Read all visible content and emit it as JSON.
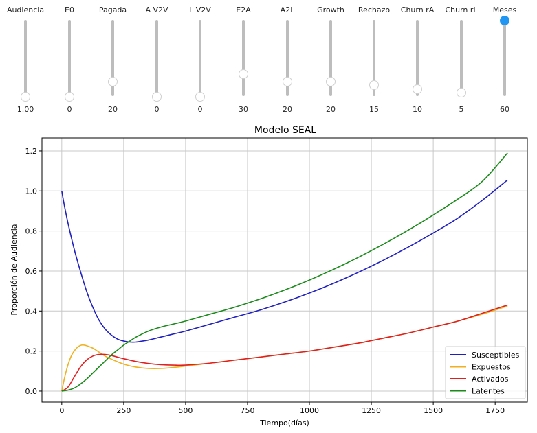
{
  "sliders": [
    {
      "label": "Audiencia",
      "value": "1.00",
      "level": 0.0,
      "active": false
    },
    {
      "label": "E0",
      "value": "0",
      "level": 0.0,
      "active": false
    },
    {
      "label": "Pagada",
      "value": "20",
      "level": 0.2,
      "active": false
    },
    {
      "label": "A V2V",
      "value": "0",
      "level": 0.0,
      "active": false
    },
    {
      "label": "L V2V",
      "value": "0",
      "level": 0.0,
      "active": false
    },
    {
      "label": "E2A",
      "value": "30",
      "level": 0.3,
      "active": false
    },
    {
      "label": "A2L",
      "value": "20",
      "level": 0.2,
      "active": false
    },
    {
      "label": "Growth",
      "value": "20",
      "level": 0.2,
      "active": false
    },
    {
      "label": "Rechazo",
      "value": "15",
      "level": 0.15,
      "active": false
    },
    {
      "label": "Churn rA",
      "value": "10",
      "level": 0.1,
      "active": false
    },
    {
      "label": "Churn rL",
      "value": "5",
      "level": 0.05,
      "active": false
    },
    {
      "label": "Meses",
      "value": "60",
      "level": 1.0,
      "active": true
    }
  ],
  "chart_data": {
    "type": "line",
    "title": "Modelo SEAL",
    "xlabel": "Tiempo(días)",
    "ylabel": "Proporción de Audiencia",
    "xlim": [
      -80,
      1880
    ],
    "ylim": [
      -0.055,
      1.265
    ],
    "xticks": [
      0,
      250,
      500,
      750,
      1000,
      1250,
      1500,
      1750
    ],
    "yticks": [
      0.0,
      0.2,
      0.4,
      0.6,
      0.8,
      1.0,
      1.2
    ],
    "xtick_labels": [
      "0",
      "250",
      "500",
      "750",
      "1000",
      "1250",
      "1500",
      "1750"
    ],
    "ytick_labels": [
      "0.0",
      "0.2",
      "0.4",
      "0.6",
      "0.8",
      "1.0",
      "1.2"
    ],
    "grid": true,
    "legend_position": "bottom-right",
    "series": [
      {
        "name": "Susceptibles",
        "color": "#1f1fbf",
        "x": [
          0,
          10,
          25,
          50,
          75,
          100,
          125,
          150,
          175,
          200,
          225,
          250,
          275,
          300,
          325,
          350,
          400,
          450,
          500,
          600,
          700,
          800,
          900,
          1000,
          1100,
          1200,
          1300,
          1400,
          1500,
          1600,
          1700,
          1800
        ],
        "y": [
          1.0,
          0.93,
          0.84,
          0.71,
          0.6,
          0.5,
          0.42,
          0.355,
          0.31,
          0.28,
          0.26,
          0.25,
          0.245,
          0.245,
          0.25,
          0.255,
          0.27,
          0.285,
          0.3,
          0.335,
          0.37,
          0.405,
          0.445,
          0.49,
          0.54,
          0.595,
          0.655,
          0.72,
          0.79,
          0.865,
          0.955,
          1.055
        ]
      },
      {
        "name": "Expuestos",
        "color": "#f0b020",
        "x": [
          0,
          10,
          20,
          30,
          40,
          50,
          60,
          70,
          80,
          90,
          100,
          125,
          150,
          175,
          200,
          250,
          300,
          350,
          400,
          450,
          500,
          600,
          700,
          800,
          900,
          1000,
          1100,
          1200,
          1300,
          1400,
          1500,
          1600,
          1700,
          1800
        ],
        "y": [
          0.0,
          0.06,
          0.11,
          0.15,
          0.18,
          0.2,
          0.215,
          0.225,
          0.23,
          0.23,
          0.227,
          0.215,
          0.195,
          0.175,
          0.16,
          0.135,
          0.12,
          0.113,
          0.113,
          0.118,
          0.125,
          0.14,
          0.155,
          0.17,
          0.185,
          0.2,
          0.22,
          0.24,
          0.265,
          0.29,
          0.32,
          0.35,
          0.385,
          0.425
        ]
      },
      {
        "name": "Activados",
        "color": "#e02020",
        "x": [
          0,
          25,
          50,
          75,
          100,
          125,
          150,
          175,
          200,
          225,
          250,
          300,
          350,
          400,
          450,
          500,
          600,
          700,
          800,
          900,
          1000,
          1100,
          1200,
          1300,
          1400,
          1500,
          1600,
          1700,
          1800
        ],
        "y": [
          0.0,
          0.02,
          0.07,
          0.12,
          0.155,
          0.175,
          0.183,
          0.183,
          0.178,
          0.17,
          0.162,
          0.148,
          0.138,
          0.132,
          0.13,
          0.13,
          0.14,
          0.155,
          0.17,
          0.185,
          0.2,
          0.22,
          0.24,
          0.265,
          0.29,
          0.32,
          0.35,
          0.39,
          0.43
        ]
      },
      {
        "name": "Latentes",
        "color": "#1a8a1a",
        "x": [
          0,
          25,
          50,
          75,
          100,
          125,
          150,
          175,
          200,
          225,
          250,
          275,
          300,
          350,
          400,
          450,
          500,
          600,
          700,
          800,
          900,
          1000,
          1100,
          1200,
          1300,
          1400,
          1500,
          1600,
          1700,
          1800
        ],
        "y": [
          0.0,
          0.005,
          0.015,
          0.035,
          0.06,
          0.09,
          0.12,
          0.15,
          0.18,
          0.205,
          0.23,
          0.25,
          0.27,
          0.3,
          0.32,
          0.335,
          0.35,
          0.385,
          0.42,
          0.46,
          0.505,
          0.555,
          0.61,
          0.67,
          0.735,
          0.805,
          0.88,
          0.96,
          1.05,
          1.19
        ]
      }
    ]
  }
}
